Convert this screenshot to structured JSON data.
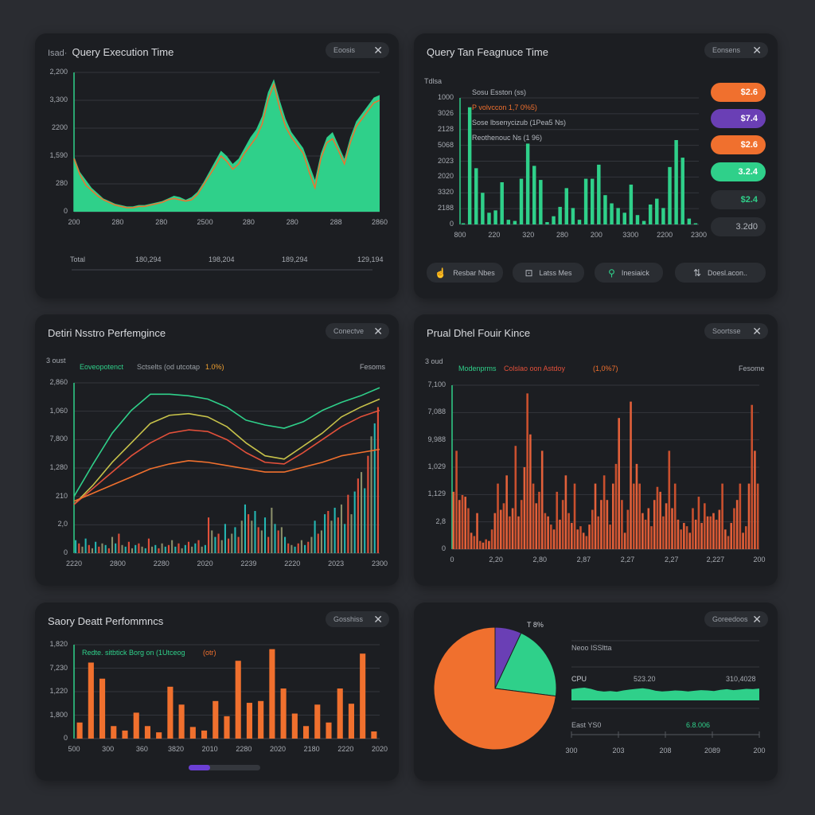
{
  "colors": {
    "green": "#2fd08a",
    "orange": "#f0702e",
    "purple": "#6a3fb5",
    "red": "#e2503a",
    "teal": "#24b7b3",
    "yellow": "#c7c24a"
  },
  "panels": [
    {
      "pre": "Isad·",
      "title": "Query Execution Time",
      "button": "Eoosis"
    },
    {
      "title": "Query Tan Feagnuce Time",
      "button": "Eonsens"
    },
    {
      "title": "Detiri Nsstro Perfemgince",
      "button": "Conectve"
    },
    {
      "title": "Prual Dhel Fouir Kince",
      "button": "Soortsse"
    },
    {
      "title": "Saory Deatt Perfommncs",
      "button": "Gosshiss"
    },
    {
      "button": "Goreedoos"
    }
  ],
  "panel1_timeline": {
    "label": "Total",
    "values": [
      "180,294",
      "198,204",
      "189,294",
      "129,194"
    ]
  },
  "panel2_pills": [
    {
      "value": "$2.6",
      "color": "#f0702e"
    },
    {
      "value": "$7.4",
      "color": "#6a3fb5"
    },
    {
      "value": "$2.6",
      "color": "#f0702e"
    },
    {
      "value": "3.2.4",
      "color": "#2fd08a"
    },
    {
      "value": "$2.4",
      "color": "#2a2d32"
    },
    {
      "value": "3.2d0",
      "color": "#2a2d32"
    }
  ],
  "panel2_buttons": [
    {
      "label": "Resbar Nbes",
      "icon": "hand-icon"
    },
    {
      "label": "Latss Mes",
      "icon": "terminal-icon"
    },
    {
      "label": "Inesiaick",
      "icon": "search-icon"
    },
    {
      "label": "Doesl.acon..",
      "icon": "sliders-icon"
    }
  ],
  "panel5_scroll": {
    "progress": 0.3
  },
  "chart_data": [
    {
      "type": "area",
      "ylabels": [
        "2,200",
        "3,300",
        "2200",
        "1,590",
        "280",
        "0"
      ],
      "xlabels": [
        "200",
        "280",
        "280",
        "2500",
        "280",
        "280",
        "288",
        "2860"
      ],
      "ylim": [
        0,
        105
      ],
      "series": [
        {
          "color": "#2fd08a",
          "values": [
            42,
            30,
            24,
            18,
            14,
            10,
            8,
            6,
            5,
            4,
            4,
            5,
            5,
            6,
            7,
            8,
            10,
            12,
            11,
            9,
            11,
            15,
            22,
            30,
            38,
            46,
            42,
            36,
            40,
            48,
            56,
            62,
            72,
            90,
            100,
            84,
            70,
            60,
            54,
            48,
            36,
            24,
            44,
            56,
            60,
            50,
            40,
            56,
            68,
            74,
            80,
            86,
            88
          ]
        },
        {
          "color": "#f0702e",
          "values": [
            40,
            28,
            20,
            16,
            12,
            9,
            7,
            5,
            4,
            3,
            3,
            4,
            4,
            5,
            6,
            7,
            9,
            10,
            9,
            8,
            9,
            13,
            20,
            27,
            34,
            42,
            38,
            32,
            36,
            44,
            50,
            56,
            66,
            84,
            96,
            78,
            64,
            56,
            50,
            44,
            30,
            18,
            40,
            52,
            55,
            46,
            36,
            52,
            64,
            70,
            76,
            82,
            84
          ]
        }
      ]
    },
    {
      "type": "bar",
      "ylabel": "Tdlsa",
      "ylabels": [
        "1000",
        "3026",
        "2128",
        "5068",
        "2023",
        "2020",
        "3320",
        "2188",
        "0"
      ],
      "xlabels": [
        "800",
        "220",
        "320",
        "280",
        "200",
        "3300",
        "2200",
        "2300"
      ],
      "ylim": [
        0,
        108
      ],
      "legend": [
        {
          "text": "Sosu Esston (ss)",
          "color": "#b4b8bf"
        },
        {
          "text": "P volvccon 1,7 0%5)",
          "color": "#f0702e"
        },
        {
          "text": "Sose lbsenycizub (1Pea5 Ns)",
          "color": "#b4b8bf"
        },
        {
          "text": "Reothenouc Ns (1 96)",
          "color": "#b4b8bf"
        }
      ],
      "series": [
        {
          "color": "#2fd08a",
          "values": [
            1,
            100,
            48,
            27,
            10,
            12,
            36,
            4,
            3,
            39,
            69,
            50,
            38,
            2,
            7,
            15,
            31,
            14,
            4,
            39,
            39,
            51,
            25,
            18,
            14,
            10,
            34,
            8,
            3,
            17,
            22,
            14,
            49,
            72,
            57,
            5,
            1
          ]
        }
      ]
    },
    {
      "type": "line+bar",
      "ylabel": "3 oust",
      "ylabels": [
        "2,860",
        "1,060",
        "7,800",
        "1,280",
        "210",
        "2,0",
        "0"
      ],
      "xlabels": [
        "2220",
        "2800",
        "2280",
        "2020",
        "2239",
        "2220",
        "2023",
        "2300"
      ],
      "ylim": [
        0,
        105
      ],
      "right_label": "Fesoms",
      "legend": [
        {
          "text": "Eoveopotenct",
          "color": "#2fd08a"
        },
        {
          "text": "Sctselts (od utcotap",
          "color": "#9aa0a6"
        },
        {
          "text": "1.0%)",
          "color": "#f0a030"
        }
      ],
      "lines": [
        {
          "color": "#2fd08a",
          "values": [
            35,
            55,
            74,
            88,
            98,
            98,
            97,
            95,
            90,
            82,
            79,
            77,
            81,
            88,
            93,
            97,
            102
          ]
        },
        {
          "color": "#c7c24a",
          "values": [
            30,
            42,
            56,
            68,
            80,
            85,
            86,
            84,
            78,
            68,
            60,
            58,
            66,
            74,
            84,
            90,
            95
          ]
        },
        {
          "color": "#e2503a",
          "values": [
            30,
            40,
            50,
            60,
            68,
            74,
            76,
            75,
            70,
            62,
            56,
            55,
            62,
            70,
            78,
            84,
            88
          ]
        },
        {
          "color": "#f0702e",
          "values": [
            32,
            37,
            42,
            47,
            52,
            55,
            57,
            56,
            54,
            52,
            50,
            50,
            53,
            56,
            60,
            62,
            64
          ]
        }
      ],
      "bars": [
        8,
        6,
        4,
        9,
        5,
        3,
        7,
        4,
        6,
        5,
        3,
        10,
        6,
        12,
        5,
        4,
        7,
        3,
        5,
        6,
        4,
        3,
        9,
        4,
        5,
        3,
        6,
        4,
        5,
        8,
        4,
        6,
        3,
        5,
        7,
        4,
        6,
        8,
        4,
        5,
        22,
        14,
        10,
        12,
        8,
        18,
        9,
        12,
        16,
        10,
        20,
        30,
        24,
        20,
        26,
        16,
        14,
        22,
        10,
        28,
        18,
        14,
        16,
        10,
        6,
        5,
        4,
        6,
        8,
        5,
        7,
        10,
        20,
        12,
        14,
        24,
        26,
        20,
        28,
        22,
        30,
        18,
        36,
        24,
        38,
        46,
        50,
        40,
        60,
        72,
        80,
        90
      ]
    },
    {
      "type": "bar",
      "ylabel": "3 oud",
      "ylabels": [
        "7,100",
        "7,088",
        "9,988",
        "1,029",
        "1,129",
        "2,8",
        "0"
      ],
      "xlabels": [
        "0",
        "2,20",
        "2,80",
        "2,87",
        "2,27",
        "2,27",
        "2,227",
        "200"
      ],
      "ylim": [
        0,
        100
      ],
      "right_label": "Fesome",
      "legend": [
        {
          "text": "Modenprms",
          "color": "#2fd08a"
        },
        {
          "text": "Colslao oon Astdoy",
          "color": "#e2503a"
        },
        {
          "text": "(1,0%7)",
          "color": "#f0702e"
        }
      ],
      "series": [
        {
          "color": "#e2603a",
          "values": [
            35,
            60,
            30,
            33,
            32,
            25,
            10,
            8,
            22,
            5,
            4,
            6,
            5,
            12,
            22,
            40,
            24,
            28,
            45,
            20,
            25,
            63,
            20,
            30,
            50,
            95,
            70,
            40,
            28,
            35,
            60,
            22,
            20,
            15,
            12,
            35,
            18,
            30,
            45,
            22,
            16,
            40,
            12,
            14,
            10,
            8,
            15,
            24,
            40,
            20,
            30,
            45,
            30,
            15,
            40,
            52,
            80,
            30,
            10,
            24,
            90,
            40,
            52,
            40,
            22,
            18,
            25,
            14,
            30,
            38,
            35,
            20,
            28,
            60,
            25,
            40,
            18,
            12,
            16,
            14,
            10,
            25,
            18,
            32,
            16,
            28,
            20,
            20,
            22,
            18,
            24,
            40,
            12,
            8,
            16,
            25,
            30,
            40,
            10,
            14,
            40,
            88,
            60,
            40
          ]
        }
      ]
    },
    {
      "type": "bar",
      "ylabels": [
        "1,820",
        "7,230",
        "1,220",
        "1,800",
        "0"
      ],
      "xlabels": [
        "500",
        "300",
        "360",
        "3820",
        "2010",
        "2280",
        "2020",
        "2180",
        "2220",
        "2020"
      ],
      "ylim": [
        0,
        105
      ],
      "legend": [
        {
          "text": "Redte. sitbtick Borg on (1Utceog",
          "color": "#2fd08a"
        },
        {
          "text": "(otr)",
          "color": "#f0702e"
        }
      ],
      "series": [
        {
          "color": "#f0702e",
          "values": [
            18,
            85,
            67,
            14,
            9,
            29,
            14,
            7,
            58,
            38,
            13,
            9,
            42,
            25,
            87,
            40,
            42,
            100,
            56,
            28,
            14,
            38,
            18,
            56,
            39,
            95,
            8
          ]
        }
      ]
    },
    {
      "type": "pie",
      "label": "T 8%",
      "slices": [
        {
          "value": 7,
          "color": "#6a3fb5"
        },
        {
          "value": 20,
          "color": "#2fd08a"
        },
        {
          "value": 73,
          "color": "#f0702e"
        }
      ],
      "side": {
        "heading": "Neoo ISSltta",
        "metric": "CPU",
        "metric_mid": "523.20",
        "metric_right": "310,4028",
        "sub_label": "East YS0",
        "sub_value": "6.8.006",
        "sparkline": [
          60,
          66,
          70,
          62,
          50,
          45,
          48,
          44,
          52,
          58,
          62,
          66,
          60,
          50,
          46,
          48,
          52,
          50,
          46,
          50,
          54,
          52,
          48,
          56,
          60,
          54,
          58,
          62,
          60,
          64
        ],
        "xlabels": [
          "300",
          "203",
          "208",
          "2089",
          "200"
        ]
      }
    }
  ]
}
